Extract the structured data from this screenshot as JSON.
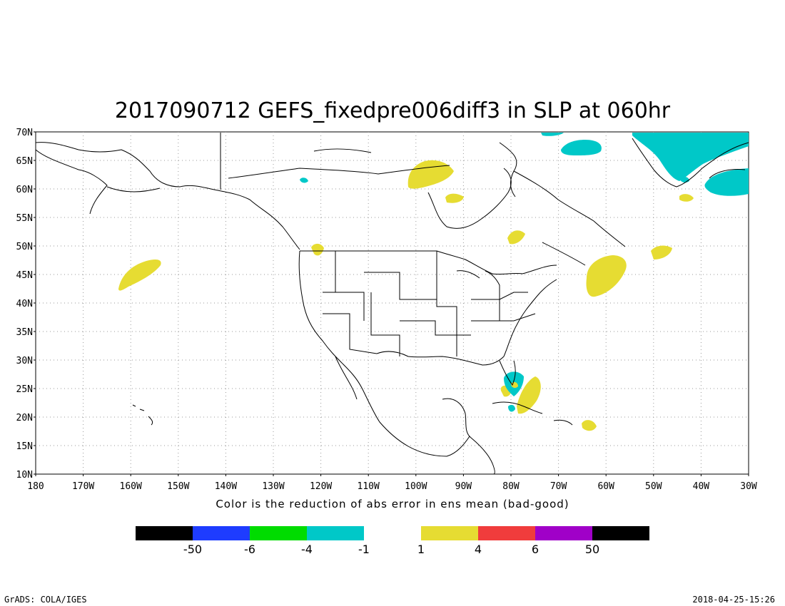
{
  "title": "2017090712 GEFS_fixedpre006diff3 in SLP at 060hr",
  "caption": "Color is the reduction of abs error in ens mean (bad-good)",
  "footer": {
    "left": "GrADS: COLA/IGES",
    "right": "2018-04-25-15:26"
  },
  "map": {
    "projection": "lat-lon",
    "lon_range": [
      -180,
      -30
    ],
    "lat_range": [
      10,
      70
    ],
    "grid": true,
    "lat_labels": [
      "10N",
      "15N",
      "20N",
      "25N",
      "30N",
      "35N",
      "40N",
      "45N",
      "50N",
      "55N",
      "60N",
      "65N",
      "70N"
    ],
    "lon_labels": [
      "180",
      "170W",
      "160W",
      "150W",
      "140W",
      "130W",
      "120W",
      "110W",
      "100W",
      "90W",
      "80W",
      "70W",
      "60W",
      "50W",
      "40W",
      "30W"
    ],
    "colors": {
      "positive_1_4": "#e6dc32",
      "negative_1_4": "#00c8c8"
    }
  },
  "colorbar": {
    "segments": [
      {
        "color": "#000000"
      },
      {
        "color": "#1e3cff"
      },
      {
        "color": "#00dc00"
      },
      {
        "color": "#00c8c8"
      },
      {
        "color": "#ffffff"
      },
      {
        "color": "#e6dc32"
      },
      {
        "color": "#f03c3c"
      },
      {
        "color": "#a000c8"
      },
      {
        "color": "#000000"
      }
    ],
    "labels": [
      "-50",
      "-6",
      "-4",
      "-1",
      "1",
      "4",
      "6",
      "50"
    ]
  }
}
